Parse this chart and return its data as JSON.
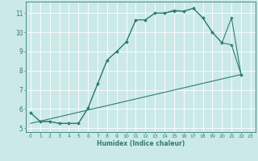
{
  "title": "",
  "xlabel": "Humidex (Indice chaleur)",
  "bg_color": "#cce9e9",
  "line_color": "#2e7d6e",
  "grid_color": "#ffffff",
  "xlim": [
    -0.5,
    23.5
  ],
  "ylim": [
    4.8,
    11.6
  ],
  "xticks": [
    0,
    1,
    2,
    3,
    4,
    5,
    6,
    7,
    8,
    9,
    10,
    11,
    12,
    13,
    14,
    15,
    16,
    17,
    18,
    19,
    20,
    21,
    22,
    23
  ],
  "yticks": [
    5,
    6,
    7,
    8,
    9,
    10,
    11
  ],
  "line1_x": [
    0,
    1,
    2,
    3,
    4,
    5,
    6,
    7,
    8,
    9,
    10,
    11,
    12,
    13,
    14,
    15,
    16,
    17,
    18,
    19,
    20,
    21,
    22
  ],
  "line1_y": [
    5.8,
    5.35,
    5.35,
    5.25,
    5.25,
    5.25,
    6.05,
    7.3,
    8.55,
    9.0,
    9.5,
    10.65,
    10.65,
    11.0,
    11.0,
    11.15,
    11.1,
    11.25,
    10.75,
    10.0,
    9.45,
    10.75,
    7.8
  ],
  "line2_x": [
    0,
    1,
    2,
    3,
    4,
    5,
    6,
    7,
    8,
    9,
    10,
    11,
    12,
    13,
    14,
    15,
    16,
    17,
    18,
    19,
    20,
    21,
    22
  ],
  "line2_y": [
    5.8,
    5.35,
    5.35,
    5.25,
    5.25,
    5.25,
    6.05,
    7.3,
    8.55,
    9.0,
    9.5,
    10.65,
    10.65,
    11.0,
    11.0,
    11.1,
    11.1,
    11.25,
    10.75,
    10.0,
    9.45,
    9.35,
    7.8
  ],
  "line3_x": [
    0,
    22
  ],
  "line3_y": [
    5.25,
    7.8
  ]
}
